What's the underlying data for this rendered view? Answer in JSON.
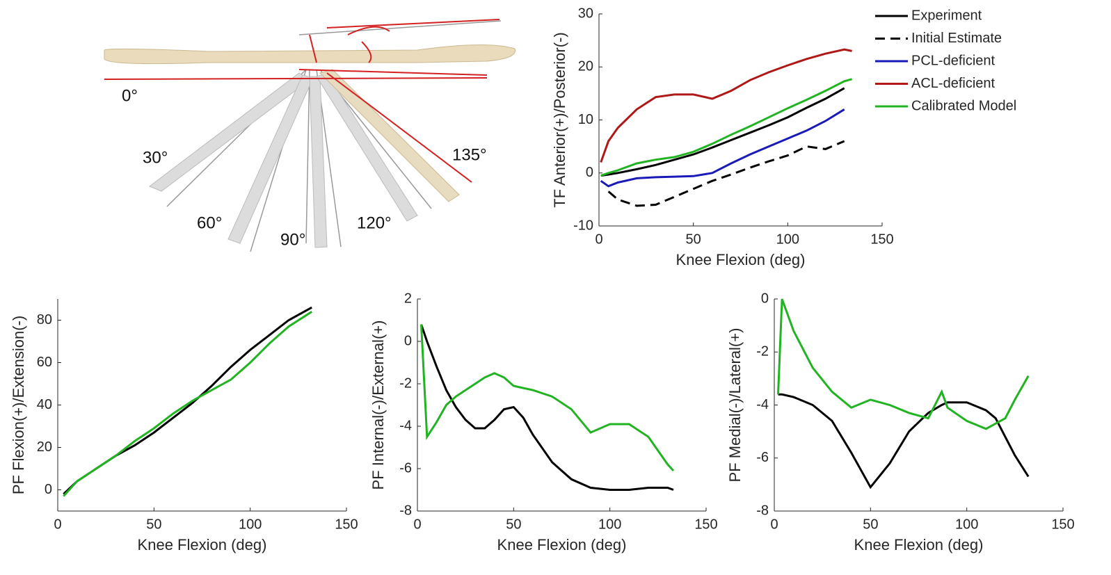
{
  "illustration": {
    "angle_labels": [
      "0°",
      "30°",
      "60°",
      "90°",
      "120°",
      "135°"
    ]
  },
  "chart_data": [
    {
      "type": "line",
      "ylabel": "TF Anterior(+)/Posterior(-)",
      "xlabel": "Knee Flexion (deg)",
      "xlim": [
        0,
        150
      ],
      "xticks": [
        0,
        50,
        100,
        150
      ],
      "ylim": [
        -10,
        30
      ],
      "yticks": [
        -10,
        0,
        10,
        20,
        30
      ],
      "legend": "right",
      "x": [
        1,
        5,
        10,
        20,
        30,
        40,
        50,
        60,
        70,
        80,
        90,
        100,
        110,
        120,
        130,
        134
      ],
      "series": [
        {
          "name": "Experiment",
          "color": "#000000",
          "style": "solid",
          "values": [
            -0.5,
            -0.3,
            0,
            0.7,
            1.5,
            2.5,
            3.5,
            4.8,
            6.2,
            7.6,
            9,
            10.5,
            12.3,
            14,
            16,
            null
          ]
        },
        {
          "name": "Initial Estimate",
          "color": "#000000",
          "style": "dashed",
          "values": [
            null,
            -3.5,
            -5,
            -6.2,
            -6,
            -4.5,
            -3,
            -1.5,
            -0.3,
            1,
            2.2,
            3.3,
            5,
            4.5,
            6,
            null
          ]
        },
        {
          "name": "PCL-deficient",
          "color": "#1a1ab8",
          "style": "solid",
          "values": [
            -1.5,
            -2.5,
            -1.8,
            -1,
            -0.8,
            -0.7,
            -0.6,
            0,
            1.8,
            3.5,
            5,
            6.5,
            8,
            9.8,
            12,
            null
          ]
        },
        {
          "name": "ACL-deficient",
          "color": "#b01818",
          "style": "solid",
          "values": [
            2,
            6,
            8.5,
            12,
            14.3,
            14.8,
            14.8,
            14,
            15.5,
            17.5,
            19,
            20.3,
            21.5,
            22.5,
            23.3,
            23
          ]
        },
        {
          "name": "Calibrated Model",
          "color": "#22b322",
          "style": "solid",
          "values": [
            -0.5,
            0,
            0.5,
            1.8,
            2.5,
            3,
            4,
            5.5,
            7.2,
            8.8,
            10.5,
            12.2,
            13.8,
            15.5,
            17.3,
            17.7
          ]
        }
      ]
    },
    {
      "type": "line",
      "ylabel": "PF Flexion(+)/Extension(-)",
      "xlabel": "Knee Flexion (deg)",
      "xlim": [
        0,
        150
      ],
      "xticks": [
        0,
        50,
        100,
        150
      ],
      "ylim": [
        -10,
        90
      ],
      "yticks": [
        0,
        20,
        40,
        60,
        80
      ],
      "x": [
        3,
        10,
        20,
        30,
        40,
        50,
        60,
        70,
        80,
        90,
        100,
        110,
        120,
        132
      ],
      "series": [
        {
          "color": "#000000",
          "style": "solid",
          "values": [
            -2,
            4,
            10,
            16,
            21,
            27,
            34,
            41,
            49,
            58,
            66,
            73,
            80,
            86
          ]
        },
        {
          "color": "#22b322",
          "style": "solid",
          "values": [
            -3,
            4,
            10,
            16,
            23,
            29,
            36,
            42,
            47,
            52,
            60,
            69,
            77,
            84
          ]
        }
      ]
    },
    {
      "type": "line",
      "ylabel": "PF Internal(-)/External(+)",
      "xlabel": "Knee Flexion (deg)",
      "xlim": [
        0,
        150
      ],
      "xticks": [
        0,
        50,
        100,
        150
      ],
      "ylim": [
        -8,
        2
      ],
      "yticks": [
        -8,
        -6,
        -4,
        -2,
        0,
        2
      ],
      "x": [
        2,
        5,
        10,
        15,
        20,
        25,
        30,
        35,
        40,
        45,
        50,
        55,
        60,
        70,
        80,
        90,
        100,
        110,
        120,
        130,
        133
      ],
      "series": [
        {
          "color": "#000000",
          "style": "solid",
          "values": [
            0.8,
            0,
            -1.2,
            -2.3,
            -3.1,
            -3.7,
            -4.1,
            -4.1,
            -3.7,
            -3.2,
            -3.1,
            -3.6,
            -4.4,
            -5.7,
            -6.5,
            -6.9,
            -7.0,
            -7.0,
            -6.9,
            -6.9,
            -7.0
          ]
        },
        {
          "color": "#22b322",
          "style": "solid",
          "values": [
            0.8,
            -4.5,
            -3.8,
            -3.0,
            -2.6,
            -2.3,
            -2.0,
            -1.7,
            -1.5,
            -1.7,
            -2.1,
            -2.2,
            -2.3,
            -2.6,
            -3.2,
            -4.3,
            -3.9,
            -3.9,
            -4.5,
            -5.8,
            -6.1
          ]
        }
      ]
    },
    {
      "type": "line",
      "ylabel": "PF Medial(-)/Lateral(+)",
      "xlabel": "Knee Flexion (deg)",
      "xlim": [
        0,
        150
      ],
      "xticks": [
        0,
        50,
        100,
        150
      ],
      "ylim": [
        -8,
        0
      ],
      "yticks": [
        -8,
        -6,
        -4,
        -2,
        0
      ],
      "x": [
        2,
        4,
        10,
        20,
        30,
        40,
        50,
        60,
        70,
        80,
        87,
        90,
        100,
        110,
        115,
        120,
        125,
        132
      ],
      "series": [
        {
          "color": "#000000",
          "style": "solid",
          "values": [
            -3.6,
            -3.6,
            -3.7,
            -4.0,
            -4.6,
            -5.8,
            -7.1,
            -6.2,
            -5.0,
            -4.3,
            -4.0,
            -3.9,
            -3.9,
            -4.2,
            -4.5,
            -5.2,
            -5.9,
            -6.7
          ]
        },
        {
          "color": "#22b322",
          "style": "solid",
          "values": [
            -3.6,
            0,
            -1.2,
            -2.6,
            -3.5,
            -4.1,
            -3.8,
            -4.0,
            -4.3,
            -4.5,
            -3.5,
            -4.1,
            -4.6,
            -4.9,
            -4.7,
            -4.5,
            -3.8,
            -2.9
          ]
        }
      ]
    }
  ]
}
